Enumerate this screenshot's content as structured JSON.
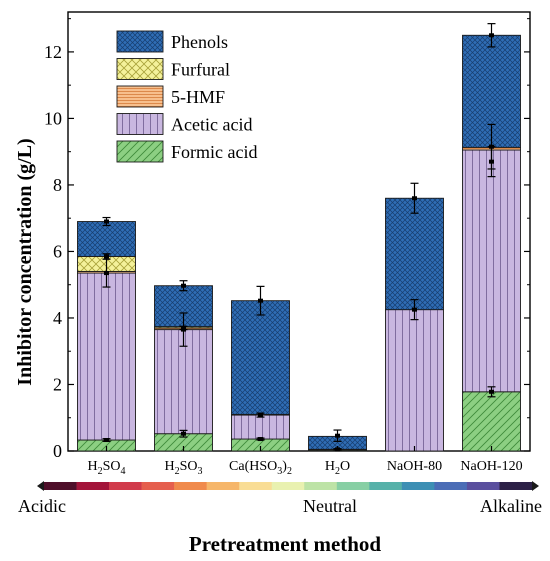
{
  "chart_data": {
    "type": "bar",
    "stacked": true,
    "ylabel": "Inhibitor concentration (g/L)",
    "xlabel": "Pretreatment method",
    "ylim": [
      0,
      13.2
    ],
    "yticks": [
      0,
      2,
      4,
      6,
      8,
      10,
      12
    ],
    "categories": [
      "H2SO4",
      "H2SO3",
      "Ca(HSO3)2",
      "H2O",
      "NaOH-80",
      "NaOH-120"
    ],
    "series": [
      {
        "name": "Formic acid",
        "color": "#8ccf82",
        "hatch": "diagonal",
        "values": [
          0.33,
          0.52,
          0.36,
          0.03,
          0.0,
          1.78
        ]
      },
      {
        "name": "Acetic acid",
        "color": "#c9b7e0",
        "hatch": "vertical",
        "values": [
          5.02,
          3.13,
          0.72,
          0.02,
          4.25,
          7.27
        ]
      },
      {
        "name": "5-HMF",
        "color": "#f7bf8d",
        "hatch": "horizontal",
        "values": [
          0.05,
          0.05,
          0.02,
          0.0,
          0.0,
          0.08
        ]
      },
      {
        "name": "Furfural",
        "color": "#f4f19a",
        "hatch": "crosshatch",
        "values": [
          0.45,
          0.04,
          0.0,
          0.0,
          0.0,
          0.0
        ]
      },
      {
        "name": "Phenols",
        "color": "#2f6db5",
        "hatch": "dense",
        "values": [
          1.05,
          1.23,
          3.42,
          0.39,
          3.35,
          3.37
        ]
      }
    ],
    "error_bars": [
      [
        [
          0.33,
          0.04
        ],
        [
          5.35,
          0.42
        ],
        [
          5.85,
          0.08
        ],
        [
          6.9,
          0.12
        ]
      ],
      [
        [
          0.52,
          0.1
        ],
        [
          3.65,
          0.5
        ],
        [
          3.7,
          0.05
        ],
        [
          4.97,
          0.15
        ]
      ],
      [
        [
          0.36,
          0.03
        ],
        [
          1.08,
          0.06
        ],
        [
          4.52,
          0.43
        ]
      ],
      [
        [
          0.05,
          0.02
        ],
        [
          0.46,
          0.17
        ]
      ],
      [
        [
          4.25,
          0.3
        ],
        [
          7.6,
          0.45
        ]
      ],
      [
        [
          1.78,
          0.15
        ],
        [
          8.7,
          0.45
        ],
        [
          9.15,
          0.67
        ],
        [
          12.5,
          0.35
        ]
      ]
    ],
    "legend_order": [
      "Phenols",
      "Furfural",
      "5-HMF",
      "Acetic acid",
      "Formic acid"
    ],
    "legend_position": "top-left",
    "category_labels": [
      {
        "base": "H",
        "sub1": "2",
        "mid": "SO",
        "sub2": "4",
        "end": ""
      },
      {
        "base": "H",
        "sub1": "2",
        "mid": "SO",
        "sub2": "3",
        "end": ""
      },
      {
        "base": "Ca(HSO",
        "sub1": "3",
        "mid": ")",
        "sub2": "2",
        "end": ""
      },
      {
        "base": "H",
        "sub1": "2",
        "mid": "O",
        "sub2": "",
        "end": ""
      },
      {
        "base": "NaOH-80",
        "sub1": "",
        "mid": "",
        "sub2": "",
        "end": ""
      },
      {
        "base": "NaOH-120",
        "sub1": "",
        "mid": "",
        "sub2": "",
        "end": ""
      }
    ],
    "ph_scale": {
      "labels": [
        "Acidic",
        "Neutral",
        "Alkaline"
      ],
      "colors": [
        "#4f0f2a",
        "#a3143a",
        "#d13b4b",
        "#e55f4e",
        "#f08a4c",
        "#f6b66a",
        "#f9dd95",
        "#e9f1b0",
        "#bde3a6",
        "#87cfa4",
        "#56b1a9",
        "#3d8fb4",
        "#4b6db6",
        "#5a4f9e",
        "#2c2046"
      ]
    }
  }
}
